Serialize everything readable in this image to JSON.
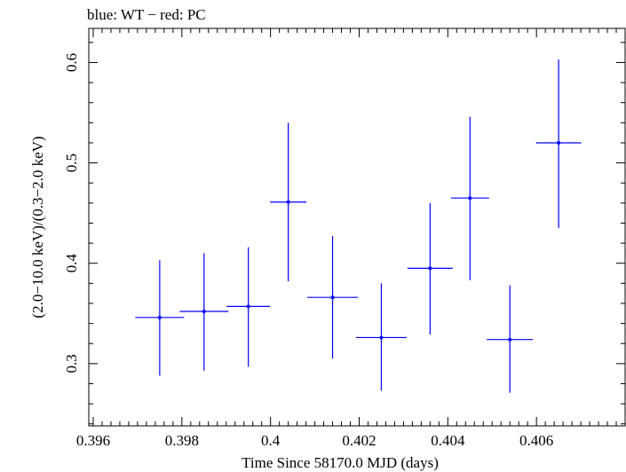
{
  "chart_data": {
    "type": "scatter",
    "title": "blue: WT − red: PC",
    "xlabel": "Time Since 58170.0 MJD (days)",
    "ylabel": "(2.0−10.0 keV)/(0.3−2.0 keV)",
    "xlim": [
      0.3959,
      0.408
    ],
    "ylim": [
      0.238,
      0.634
    ],
    "x_ticks": [
      0.396,
      0.398,
      0.4,
      0.402,
      0.404,
      0.406
    ],
    "x_tick_labels": [
      "0.396",
      "0.398",
      "0.4",
      "0.402",
      "0.404",
      "0.406"
    ],
    "y_ticks": [
      0.3,
      0.4,
      0.5,
      0.6
    ],
    "y_tick_labels": [
      "0.3",
      "0.4",
      "0.5",
      "0.6"
    ],
    "grid": false,
    "series": [
      {
        "color": "#0000ff",
        "points": [
          {
            "x": 0.3975,
            "y": 0.346,
            "xerr": 0.00055,
            "yerr_low": 0.058,
            "yerr_high": 0.057
          },
          {
            "x": 0.3985,
            "y": 0.352,
            "xerr": 0.00055,
            "yerr_low": 0.059,
            "yerr_high": 0.058
          },
          {
            "x": 0.3995,
            "y": 0.357,
            "xerr": 0.00049,
            "yerr_low": 0.06,
            "yerr_high": 0.059
          },
          {
            "x": 0.4004,
            "y": 0.461,
            "xerr": 0.00041,
            "yerr_low": 0.079,
            "yerr_high": 0.079
          },
          {
            "x": 0.4014,
            "y": 0.366,
            "xerr": 0.00057,
            "yerr_low": 0.061,
            "yerr_high": 0.061
          },
          {
            "x": 0.4025,
            "y": 0.326,
            "xerr": 0.00057,
            "yerr_low": 0.053,
            "yerr_high": 0.054
          },
          {
            "x": 0.4036,
            "y": 0.395,
            "xerr": 0.00051,
            "yerr_low": 0.066,
            "yerr_high": 0.065
          },
          {
            "x": 0.4045,
            "y": 0.465,
            "xerr": 0.00043,
            "yerr_low": 0.082,
            "yerr_high": 0.081
          },
          {
            "x": 0.4054,
            "y": 0.324,
            "xerr": 0.00052,
            "yerr_low": 0.053,
            "yerr_high": 0.054
          },
          {
            "x": 0.4065,
            "y": 0.52,
            "xerr": 0.00051,
            "yerr_low": 0.085,
            "yerr_high": 0.083
          }
        ]
      }
    ]
  }
}
